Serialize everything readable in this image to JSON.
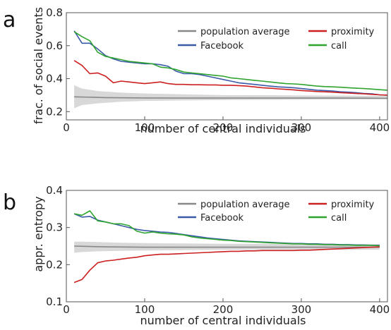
{
  "chart_data": [
    {
      "type": "line",
      "panel_label": "a",
      "xlabel": "number of central individuals",
      "ylabel": "frac. of social events",
      "xlim": [
        0,
        410
      ],
      "ylim": [
        0.15,
        0.8
      ],
      "xticks": [
        0,
        100,
        200,
        300,
        400
      ],
      "yticks": [
        0.2,
        0.4,
        0.6,
        0.8
      ],
      "tick_labels_x": [
        "0",
        "100",
        "200",
        "300",
        "400"
      ],
      "tick_labels_y": [
        "0.2",
        "0.4",
        "0.6",
        "0.8"
      ],
      "grid": false,
      "legend_position": "top",
      "series": [
        {
          "name": "population average",
          "color": "#888888",
          "x": [
            10,
            50,
            100,
            150,
            200,
            250,
            300,
            350,
            410
          ],
          "y": [
            0.29,
            0.285,
            0.283,
            0.282,
            0.282,
            0.282,
            0.282,
            0.282,
            0.281
          ]
        },
        {
          "name": "Facebook",
          "color": "#3a5aa8",
          "x": [
            10,
            20,
            30,
            40,
            50,
            60,
            70,
            80,
            90,
            100,
            110,
            120,
            130,
            140,
            150,
            160,
            170,
            180,
            190,
            200,
            210,
            220,
            230,
            240,
            250,
            260,
            270,
            280,
            290,
            300,
            310,
            320,
            330,
            340,
            350,
            360,
            370,
            380,
            390,
            400,
            410
          ],
          "y": [
            0.69,
            0.615,
            0.615,
            0.58,
            0.54,
            0.52,
            0.505,
            0.5,
            0.495,
            0.49,
            0.49,
            0.485,
            0.475,
            0.445,
            0.43,
            0.43,
            0.425,
            0.415,
            0.405,
            0.395,
            0.385,
            0.375,
            0.37,
            0.365,
            0.36,
            0.355,
            0.35,
            0.348,
            0.345,
            0.34,
            0.335,
            0.33,
            0.328,
            0.325,
            0.32,
            0.318,
            0.315,
            0.31,
            0.308,
            0.302,
            0.3
          ]
        },
        {
          "name": "proximity",
          "color": "#cc1f1f",
          "x": [
            10,
            20,
            30,
            40,
            50,
            60,
            70,
            80,
            90,
            100,
            110,
            120,
            130,
            140,
            150,
            160,
            170,
            180,
            190,
            200,
            210,
            220,
            230,
            240,
            250,
            260,
            270,
            280,
            290,
            300,
            310,
            320,
            330,
            340,
            350,
            360,
            370,
            380,
            390,
            400,
            410
          ],
          "y": [
            0.51,
            0.48,
            0.43,
            0.435,
            0.415,
            0.375,
            0.385,
            0.38,
            0.375,
            0.37,
            0.375,
            0.38,
            0.37,
            0.365,
            0.365,
            0.363,
            0.363,
            0.362,
            0.362,
            0.36,
            0.36,
            0.358,
            0.355,
            0.35,
            0.345,
            0.342,
            0.338,
            0.335,
            0.332,
            0.328,
            0.325,
            0.322,
            0.32,
            0.318,
            0.315,
            0.313,
            0.31,
            0.308,
            0.305,
            0.302,
            0.3
          ]
        },
        {
          "name": "call",
          "color": "#2ea32e",
          "x": [
            10,
            20,
            30,
            40,
            50,
            60,
            70,
            80,
            90,
            100,
            110,
            120,
            130,
            140,
            150,
            160,
            170,
            180,
            190,
            200,
            210,
            220,
            230,
            240,
            250,
            260,
            270,
            280,
            290,
            300,
            310,
            320,
            330,
            340,
            350,
            360,
            370,
            380,
            390,
            400,
            410
          ],
          "y": [
            0.685,
            0.655,
            0.63,
            0.56,
            0.535,
            0.525,
            0.515,
            0.505,
            0.5,
            0.495,
            0.49,
            0.47,
            0.465,
            0.455,
            0.44,
            0.435,
            0.43,
            0.425,
            0.42,
            0.415,
            0.405,
            0.4,
            0.395,
            0.39,
            0.385,
            0.38,
            0.375,
            0.37,
            0.368,
            0.365,
            0.36,
            0.355,
            0.352,
            0.35,
            0.348,
            0.345,
            0.342,
            0.34,
            0.337,
            0.333,
            0.33
          ]
        }
      ],
      "band": {
        "color": "#d8d8d8",
        "x": [
          10,
          20,
          40,
          70,
          100,
          150,
          200,
          250,
          300,
          350,
          410
        ],
        "upper": [
          0.36,
          0.34,
          0.325,
          0.315,
          0.31,
          0.305,
          0.3,
          0.3,
          0.298,
          0.297,
          0.295
        ],
        "lower": [
          0.22,
          0.24,
          0.25,
          0.26,
          0.265,
          0.268,
          0.27,
          0.272,
          0.273,
          0.274,
          0.275
        ]
      }
    },
    {
      "type": "line",
      "panel_label": "b",
      "xlabel": "number of central individuals",
      "ylabel": "appr. entropy",
      "xlim": [
        0,
        410
      ],
      "ylim": [
        0.1,
        0.4
      ],
      "xticks": [
        0,
        100,
        200,
        300,
        400
      ],
      "yticks": [
        0.1,
        0.2,
        0.3,
        0.4
      ],
      "tick_labels_x": [
        "0",
        "100",
        "200",
        "300",
        "400"
      ],
      "tick_labels_y": [
        "0.1",
        "0.2",
        "0.3",
        "0.4"
      ],
      "grid": false,
      "legend_position": "top",
      "series": [
        {
          "name": "population average",
          "color": "#888888",
          "x": [
            10,
            50,
            100,
            150,
            200,
            250,
            300,
            350,
            400
          ],
          "y": [
            0.25,
            0.248,
            0.247,
            0.247,
            0.247,
            0.247,
            0.247,
            0.247,
            0.247
          ]
        },
        {
          "name": "Facebook",
          "color": "#3a5aa8",
          "x": [
            10,
            20,
            30,
            40,
            50,
            60,
            70,
            80,
            90,
            100,
            110,
            120,
            130,
            140,
            150,
            160,
            170,
            180,
            190,
            200,
            210,
            220,
            230,
            240,
            250,
            260,
            270,
            280,
            290,
            300,
            310,
            320,
            330,
            340,
            350,
            360,
            370,
            380,
            390,
            400
          ],
          "y": [
            0.337,
            0.328,
            0.33,
            0.32,
            0.315,
            0.31,
            0.305,
            0.3,
            0.295,
            0.292,
            0.29,
            0.288,
            0.287,
            0.284,
            0.281,
            0.278,
            0.275,
            0.272,
            0.27,
            0.268,
            0.266,
            0.264,
            0.263,
            0.262,
            0.261,
            0.26,
            0.259,
            0.258,
            0.257,
            0.257,
            0.256,
            0.256,
            0.255,
            0.255,
            0.254,
            0.254,
            0.253,
            0.253,
            0.252,
            0.252
          ]
        },
        {
          "name": "proximity",
          "color": "#cc1f1f",
          "x": [
            10,
            20,
            30,
            40,
            50,
            60,
            70,
            80,
            90,
            100,
            110,
            120,
            130,
            140,
            150,
            160,
            170,
            180,
            190,
            200,
            210,
            220,
            230,
            240,
            250,
            260,
            270,
            280,
            290,
            300,
            310,
            320,
            330,
            340,
            350,
            360,
            370,
            380,
            390,
            400
          ],
          "y": [
            0.152,
            0.16,
            0.185,
            0.205,
            0.21,
            0.212,
            0.215,
            0.218,
            0.22,
            0.224,
            0.226,
            0.228,
            0.228,
            0.229,
            0.23,
            0.231,
            0.232,
            0.233,
            0.234,
            0.235,
            0.236,
            0.236,
            0.237,
            0.237,
            0.238,
            0.238,
            0.238,
            0.238,
            0.238,
            0.239,
            0.239,
            0.24,
            0.241,
            0.242,
            0.243,
            0.244,
            0.245,
            0.246,
            0.247,
            0.248
          ]
        },
        {
          "name": "call",
          "color": "#2ea32e",
          "x": [
            10,
            20,
            30,
            40,
            50,
            60,
            70,
            80,
            90,
            100,
            110,
            120,
            130,
            140,
            150,
            160,
            170,
            180,
            190,
            200,
            210,
            220,
            230,
            240,
            250,
            260,
            270,
            280,
            290,
            300,
            310,
            320,
            330,
            340,
            350,
            360,
            370,
            380,
            390,
            400
          ],
          "y": [
            0.337,
            0.333,
            0.345,
            0.318,
            0.315,
            0.31,
            0.31,
            0.305,
            0.29,
            0.285,
            0.288,
            0.285,
            0.283,
            0.282,
            0.28,
            0.275,
            0.272,
            0.27,
            0.268,
            0.266,
            0.265,
            0.263,
            0.262,
            0.261,
            0.26,
            0.259,
            0.258,
            0.257,
            0.256,
            0.256,
            0.255,
            0.255,
            0.254,
            0.254,
            0.253,
            0.253,
            0.252,
            0.252,
            0.252,
            0.251
          ]
        }
      ],
      "band": {
        "color": "#d8d8d8",
        "x": [
          10,
          20,
          40,
          70,
          100,
          150,
          200,
          250,
          300,
          350,
          400
        ],
        "upper": [
          0.262,
          0.262,
          0.261,
          0.259,
          0.258,
          0.257,
          0.256,
          0.256,
          0.255,
          0.255,
          0.255
        ],
        "lower": [
          0.232,
          0.234,
          0.236,
          0.237,
          0.238,
          0.239,
          0.24,
          0.24,
          0.24,
          0.24,
          0.24
        ]
      }
    }
  ]
}
